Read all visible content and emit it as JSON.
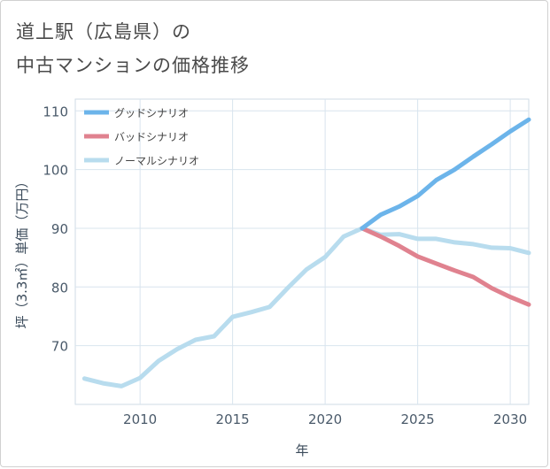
{
  "title_line1": "道上駅（広島県）の",
  "title_line2": "中古マンションの価格推移",
  "chart_data": {
    "type": "line",
    "xlabel": "年",
    "ylabel": "坪（3.3㎡）単価（万円）",
    "xlim": [
      2006.5,
      2031
    ],
    "ylim": [
      60,
      112
    ],
    "x_ticks": [
      2010,
      2015,
      2020,
      2025,
      2030
    ],
    "y_ticks": [
      70,
      80,
      90,
      100,
      110
    ],
    "grid": true,
    "legend_position": "top-left",
    "series": [
      {
        "name": "グッドシナリオ",
        "color": "#6cb4ea",
        "x": [
          2022,
          2023,
          2024,
          2025,
          2026,
          2027,
          2028,
          2029,
          2030,
          2031
        ],
        "y": [
          90.0,
          92.3,
          93.7,
          95.5,
          98.2,
          100.0,
          102.2,
          104.3,
          106.5,
          108.5
        ]
      },
      {
        "name": "バッドシナリオ",
        "color": "#e0828f",
        "x": [
          2022,
          2023,
          2024,
          2025,
          2026,
          2027,
          2028,
          2029,
          2030,
          2031
        ],
        "y": [
          90.0,
          88.6,
          87.0,
          85.2,
          84.0,
          82.8,
          81.7,
          79.8,
          78.3,
          77.0
        ]
      },
      {
        "name": "ノーマルシナリオ",
        "color": "#b8dcee",
        "x": [
          2007,
          2008,
          2009,
          2010,
          2011,
          2012,
          2013,
          2014,
          2015,
          2016,
          2017,
          2018,
          2019,
          2020,
          2021,
          2022,
          2023,
          2024,
          2025,
          2026,
          2027,
          2028,
          2029,
          2030,
          2031
        ],
        "y": [
          64.4,
          63.6,
          63.1,
          64.5,
          67.4,
          69.4,
          71.0,
          71.6,
          74.9,
          75.7,
          76.6,
          79.9,
          83.0,
          85.1,
          88.6,
          90.0,
          88.9,
          89.0,
          88.2,
          88.2,
          87.6,
          87.3,
          86.7,
          86.6,
          85.8
        ]
      }
    ]
  }
}
